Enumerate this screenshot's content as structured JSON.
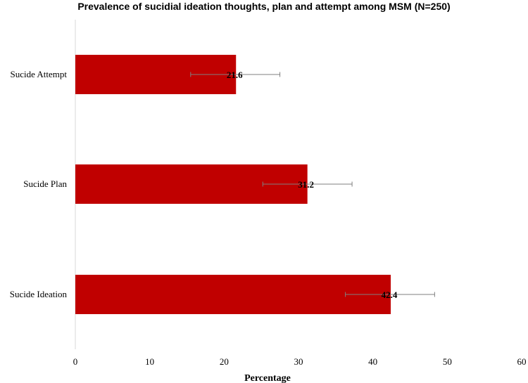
{
  "chart_data": {
    "type": "bar",
    "orientation": "horizontal",
    "title": "Prevalence of sucidial ideation thoughts, plan and attempt among MSM (N=250)",
    "xlabel": "Percentage",
    "ylabel": "",
    "xlim": [
      0,
      60
    ],
    "xticks": [
      0,
      10,
      20,
      30,
      40,
      50,
      60
    ],
    "categories": [
      "Sucide Attempt",
      "Sucide Plan",
      "Sucide Ideation"
    ],
    "values": [
      21.6,
      31.2,
      42.4
    ],
    "value_labels": [
      "21.6",
      "31.2",
      "42.4"
    ],
    "error_bars": [
      [
        15.5,
        27.5
      ],
      [
        25.2,
        37.2
      ],
      [
        36.3,
        48.3
      ]
    ],
    "bar_color": "#c00000",
    "grid": false,
    "legend": "none"
  }
}
